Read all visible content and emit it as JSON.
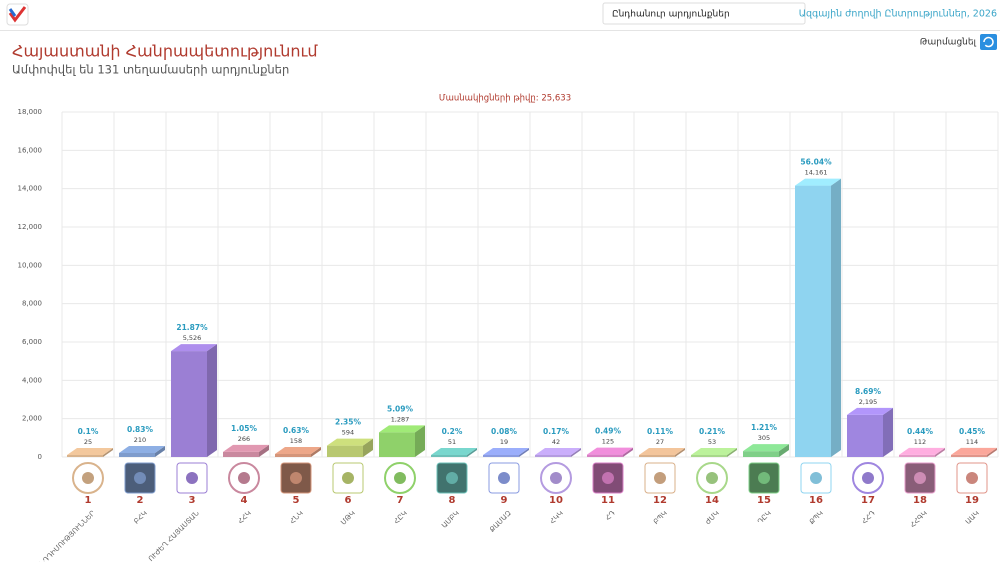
{
  "header": {
    "dropdown": "Ընդհանուր արդյունքներ",
    "election_link": "Ազգային ժողովի Ընտրություններ, 2026",
    "refresh": "Թարմացնել"
  },
  "chart_data": {
    "type": "bar",
    "title": "Հայաստանի Հանրապետությունում",
    "subtitle": "Ամփոփվել են 131 տեղամասերի արդյունքներ",
    "annotation": "Մասնակիցների թիվը: 25,633",
    "categories": [
      "1",
      "2",
      "3",
      "4",
      "5",
      "6",
      "7",
      "8",
      "9",
      "10",
      "11",
      "12",
      "14",
      "15",
      "16",
      "17",
      "18",
      "19"
    ],
    "party_names": [
      "ԸՆԴԴԻՄՈՒԹՅՈՒՆՆԵՐ",
      "ԲՀԿ",
      "ՈՒԺԵՂ ՀԱՅԱՍՏԱՆ",
      "ՀՀԿ",
      "ՀՆԿ",
      "ՄԹԿ",
      "ՀԸԿ",
      "ԱՄԲԿ",
      "ՔԱՄԱԶ",
      "ՀԿԿ",
      "ՀԴ",
      "ԲՊԿ",
      "ԺՄԿ",
      "ԴԸԿ",
      "ՔՊԿ",
      "ՀՀԴ",
      "ՀՀԳԿ",
      "ԱԱԿ"
    ],
    "values": [
      25,
      210,
      5526,
      266,
      158,
      594,
      1287,
      51,
      19,
      42,
      125,
      27,
      53,
      305,
      14161,
      2195,
      112,
      114
    ],
    "value_labels": [
      "25",
      "210",
      "5,526",
      "266",
      "158",
      "594",
      "1,287",
      "51",
      "19",
      "42",
      "125",
      "27",
      "53",
      "305",
      "14,161",
      "2,195",
      "112",
      "114"
    ],
    "percentage_labels": [
      "0.1%",
      "0.83%",
      "21.87%",
      "1.05%",
      "0.63%",
      "2.35%",
      "5.09%",
      "0.2%",
      "0.08%",
      "0.17%",
      "0.49%",
      "0.11%",
      "0.21%",
      "1.21%",
      "56.04%",
      "8.69%",
      "0.44%",
      "0.45%"
    ],
    "colors": [
      "#d9b38c",
      "#7f9ccc",
      "#9b7fd4",
      "#c9889e",
      "#d4957a",
      "#b8c870",
      "#8fd16a",
      "#6cc0b8",
      "#8a9be0",
      "#b49be0",
      "#d77fc4",
      "#d9b08a",
      "#a8d88a",
      "#7fcf88",
      "#8fd4f0",
      "#9f86e0",
      "#e49bc8",
      "#e0958a"
    ],
    "ylim": [
      0,
      18000
    ],
    "yticks": [
      0,
      {
        "value": 2000,
        "label": "2,000"
      },
      {
        "value": 4000,
        "label": "4,000"
      },
      {
        "value": 6000,
        "label": "6,000"
      },
      {
        "value": 8000,
        "label": "8,000"
      },
      {
        "value": 10000,
        "label": "10,000"
      },
      {
        "value": 12000,
        "label": "12,000"
      },
      {
        "value": 14000,
        "label": "14,000"
      },
      {
        "value": 16000,
        "label": "16,000"
      },
      {
        "value": 18000,
        "label": "18,000"
      }
    ],
    "grid": true
  }
}
